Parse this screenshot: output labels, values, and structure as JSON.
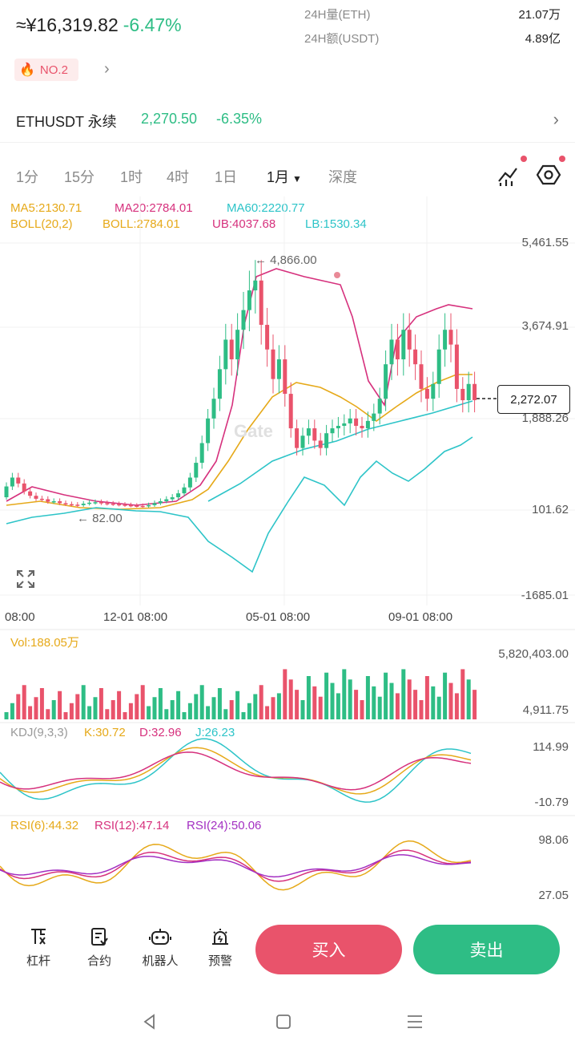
{
  "header": {
    "price_cny": "≈¥16,319.82",
    "change_pct": "-6.47%",
    "stats": [
      {
        "label": "24H量(ETH)",
        "value": "21.07万"
      },
      {
        "label": "24H额(USDT)",
        "value": "4.89亿"
      }
    ],
    "rank_badge": "NO.2"
  },
  "pair": {
    "name": "ETHUSDT 永续",
    "price": "2,270.50",
    "change": "-6.35%"
  },
  "timeframes": [
    "1分",
    "15分",
    "1时",
    "4时",
    "1日",
    "1月",
    "深度"
  ],
  "active_timeframe": "1月",
  "legends": {
    "ma5": "MA5:2130.71",
    "ma20": "MA20:2784.01",
    "ma60": "MA60:2220.77",
    "boll": "BOLL(20,2)",
    "boll_mid": "BOLL:2784.01",
    "ub": "UB:4037.68",
    "lb": "LB:1530.34",
    "vol": "Vol:188.05万",
    "kdj": "KDJ(9,3,3)",
    "k": "K:30.72",
    "d": "D:32.96",
    "j": "J:26.23",
    "rsi6": "RSI(6):44.32",
    "rsi12": "RSI(12):47.14",
    "rsi24": "RSI(24):50.06"
  },
  "main_axis": [
    "5,461.55",
    "3,674.91",
    "1,888.26",
    "101.62",
    "-1685.01"
  ],
  "volume_axis": [
    "5,820,403.00",
    "4,911.75"
  ],
  "kdj_axis": [
    "114.99",
    "-10.79"
  ],
  "rsi_axis": [
    "98.06",
    "27.05"
  ],
  "x_axis": [
    "08:00",
    "12-01 08:00",
    "05-01 08:00",
    "09-01 08:00"
  ],
  "annotations": {
    "high": "← 4,866.00",
    "low": "← 82.00",
    "current_price": "2,272.07",
    "watermark": "Gate"
  },
  "colors": {
    "up": "#2ebd85",
    "down": "#e9536b",
    "ma5": "#e6a919",
    "ma20": "#d6317d",
    "ma60": "#2dc4c8"
  },
  "bottom_nav": [
    {
      "icon": "leverage-icon",
      "label": "杠杆"
    },
    {
      "icon": "contract-icon",
      "label": "合约"
    },
    {
      "icon": "robot-icon",
      "label": "机器人"
    },
    {
      "icon": "alert-icon",
      "label": "预警"
    }
  ],
  "buy_label": "买入",
  "sell_label": "卖出"
}
